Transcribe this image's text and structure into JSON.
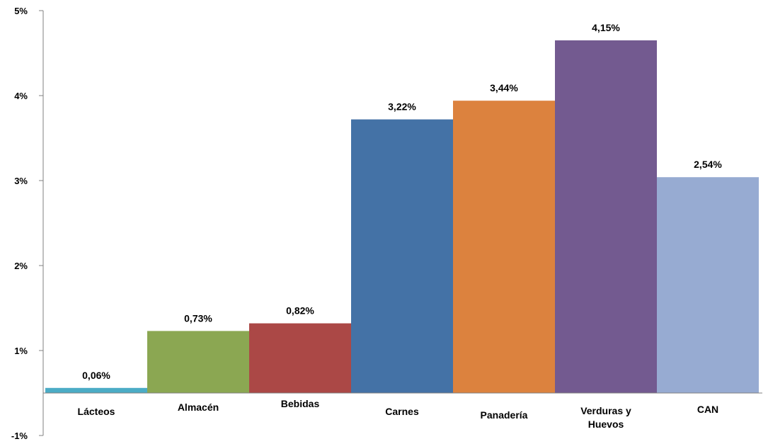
{
  "chart_data": {
    "type": "bar",
    "categories": [
      "Lácteos",
      "Almacén",
      "Bebidas",
      "Carnes",
      "Panadería",
      "Verduras y Huevos",
      "CAN"
    ],
    "category_label_lines": [
      [
        "Lácteos"
      ],
      [
        "Almacén"
      ],
      [
        "Bebidas"
      ],
      [
        "Carnes"
      ],
      [
        "Panadería"
      ],
      [
        "Verduras y",
        "Huevos"
      ],
      [
        "CAN"
      ]
    ],
    "values": [
      0.06,
      0.73,
      0.82,
      3.22,
      3.44,
      4.15,
      2.54
    ],
    "data_labels": [
      "0,06%",
      "0,73%",
      "0,82%",
      "3,22%",
      "3,44%",
      "4,15%",
      "2,54%"
    ],
    "colors": [
      "#4BACC6",
      "#8BA752",
      "#AB4846",
      "#4472A6",
      "#DC823E",
      "#735A90",
      "#97ABD2"
    ],
    "yticks": [
      -1,
      1,
      2,
      3,
      4,
      5
    ],
    "ytick_labels": [
      "-1%",
      "1%",
      "2%",
      "3%",
      "4%",
      "5%"
    ],
    "ylim": [
      -1,
      5
    ],
    "grid": false,
    "legend": "none",
    "title": "",
    "xlabel": "",
    "ylabel": ""
  }
}
